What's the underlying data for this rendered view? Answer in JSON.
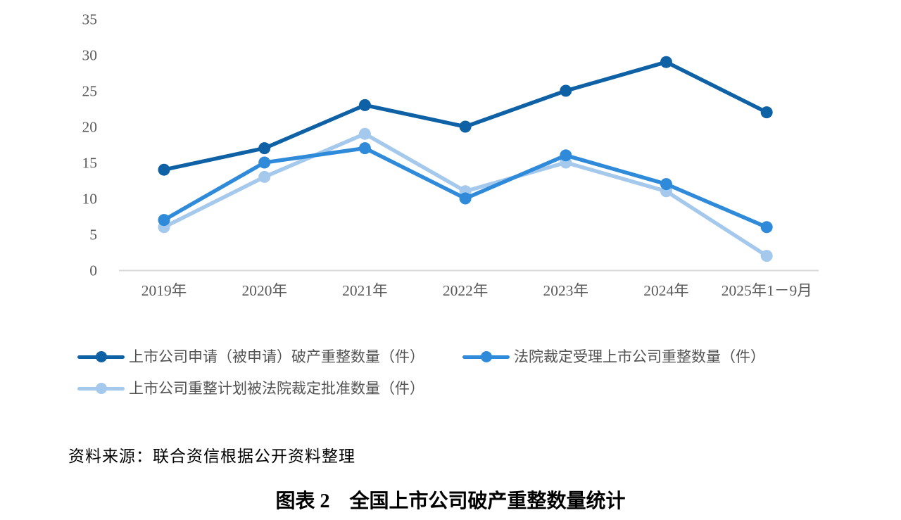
{
  "figure_title": "图表 2　全国上市公司破产重整数量统计",
  "source_note": "资料来源：联合资信根据公开资料整理",
  "chart_data": {
    "type": "line",
    "categories": [
      "2019年",
      "2020年",
      "2021年",
      "2022年",
      "2023年",
      "2024年",
      "2025年1－9月"
    ],
    "series": [
      {
        "name": "上市公司申请（被申请）破产重整数量（件）",
        "color": "#0E61A5",
        "values": [
          14,
          17,
          23,
          20,
          25,
          29,
          22
        ]
      },
      {
        "name": "法院裁定受理上市公司重整数量（件）",
        "color": "#2F8BD9",
        "values": [
          7,
          15,
          17,
          10,
          16,
          12,
          6
        ]
      },
      {
        "name": "上市公司重整计划被法院裁定批准数量（件）",
        "color": "#A5C9ED",
        "values": [
          6,
          13,
          19,
          11,
          15,
          11,
          2
        ]
      }
    ],
    "ylabel": "",
    "xlabel": "",
    "ylim": [
      0,
      35
    ],
    "yticks": [
      0,
      5,
      10,
      15,
      20,
      25,
      30,
      35
    ],
    "grid": false,
    "legend_position": "bottom",
    "axis_text_color": "#595959",
    "axis_line_color": "#D9D9D9"
  }
}
